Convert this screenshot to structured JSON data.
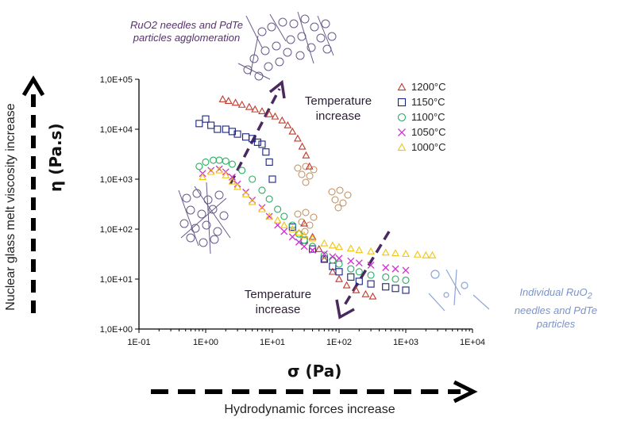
{
  "chart_data": {
    "type": "scatter",
    "xlabel": "σ (Pa)",
    "ylabel": "η (Pa.s)",
    "x_scale": "log",
    "y_scale": "log",
    "xlim": [
      0.1,
      10000
    ],
    "ylim": [
      1,
      100000
    ],
    "x_ticks": [
      "1E-01",
      "1E+00",
      "1E+01",
      "1E+02",
      "1E+03",
      "1E+04"
    ],
    "y_ticks": [
      "1,0E+00",
      "1,0E+01",
      "1,0E+02",
      "1,0E+03",
      "1,0E+04",
      "1,0E+05"
    ],
    "grid": false,
    "legend_position": "top-right",
    "series": [
      {
        "name": "1200°C",
        "color": "#c0392b",
        "marker": "triangle",
        "points": [
          [
            1.8,
            40000
          ],
          [
            2.2,
            37000
          ],
          [
            2.8,
            34000
          ],
          [
            3.5,
            31000
          ],
          [
            4.5,
            28000
          ],
          [
            5.5,
            25000
          ],
          [
            7,
            23000
          ],
          [
            9,
            20000
          ],
          [
            11,
            18000
          ],
          [
            14,
            15000
          ],
          [
            17,
            12000
          ],
          [
            20,
            9000
          ],
          [
            24,
            6500
          ],
          [
            28,
            4500
          ],
          [
            32,
            3000
          ],
          [
            36,
            1800
          ],
          [
            30,
            130
          ],
          [
            40,
            70
          ],
          [
            50,
            40
          ],
          [
            60,
            25
          ],
          [
            80,
            14
          ],
          [
            100,
            10
          ],
          [
            130,
            7.5
          ],
          [
            180,
            6
          ],
          [
            250,
            5
          ],
          [
            320,
            4.5
          ]
        ]
      },
      {
        "name": "1150°C",
        "color": "#1a237e",
        "marker": "square",
        "points": [
          [
            0.8,
            13000
          ],
          [
            1.0,
            16000
          ],
          [
            1.2,
            12000
          ],
          [
            1.5,
            10000
          ],
          [
            2,
            10000
          ],
          [
            2.5,
            9000
          ],
          [
            3,
            8000
          ],
          [
            4,
            7000
          ],
          [
            5,
            6500
          ],
          [
            6,
            5500
          ],
          [
            7,
            5000
          ],
          [
            8,
            3500
          ],
          [
            9,
            2200
          ],
          [
            10,
            1000
          ],
          [
            20,
            110
          ],
          [
            30,
            60
          ],
          [
            40,
            40
          ],
          [
            60,
            25
          ],
          [
            80,
            18
          ],
          [
            100,
            14
          ],
          [
            150,
            11
          ],
          [
            200,
            9
          ],
          [
            300,
            8
          ],
          [
            500,
            7
          ],
          [
            700,
            6.5
          ],
          [
            1000,
            6
          ]
        ]
      },
      {
        "name": "1100°C",
        "color": "#27ae60",
        "marker": "circle",
        "points": [
          [
            0.8,
            1800
          ],
          [
            1.0,
            2200
          ],
          [
            1.3,
            2400
          ],
          [
            1.6,
            2400
          ],
          [
            2,
            2300
          ],
          [
            2.5,
            2000
          ],
          [
            3.5,
            1500
          ],
          [
            5,
            1000
          ],
          [
            7,
            600
          ],
          [
            9,
            400
          ],
          [
            12,
            250
          ],
          [
            15,
            180
          ],
          [
            20,
            120
          ],
          [
            25,
            80
          ],
          [
            30,
            60
          ],
          [
            40,
            45
          ],
          [
            60,
            30
          ],
          [
            80,
            24
          ],
          [
            100,
            20
          ],
          [
            150,
            16
          ],
          [
            200,
            14
          ],
          [
            300,
            12
          ],
          [
            500,
            11
          ],
          [
            700,
            10
          ],
          [
            1000,
            9.5
          ]
        ]
      },
      {
        "name": "1050°C",
        "color": "#cc33cc",
        "marker": "cross",
        "points": [
          [
            0.9,
            1300
          ],
          [
            1.2,
            1500
          ],
          [
            1.6,
            1600
          ],
          [
            2,
            1400
          ],
          [
            2.5,
            1100
          ],
          [
            3,
            800
          ],
          [
            4,
            550
          ],
          [
            5,
            380
          ],
          [
            7,
            270
          ],
          [
            9,
            180
          ],
          [
            12,
            120
          ],
          [
            15,
            90
          ],
          [
            20,
            70
          ],
          [
            25,
            55
          ],
          [
            30,
            45
          ],
          [
            40,
            38
          ],
          [
            60,
            32
          ],
          [
            80,
            28
          ],
          [
            100,
            26
          ],
          [
            150,
            23
          ],
          [
            200,
            21
          ],
          [
            300,
            19
          ],
          [
            500,
            17
          ],
          [
            700,
            16
          ],
          [
            1000,
            15
          ]
        ]
      },
      {
        "name": "1000°C",
        "color": "#f1c40f",
        "marker": "triangle",
        "points": [
          [
            0.9,
            1100
          ],
          [
            1.2,
            1400
          ],
          [
            1.6,
            1500
          ],
          [
            2,
            1200
          ],
          [
            2.5,
            900
          ],
          [
            3,
            700
          ],
          [
            4,
            500
          ],
          [
            5,
            350
          ],
          [
            7,
            250
          ],
          [
            9,
            180
          ],
          [
            12,
            150
          ],
          [
            15,
            120
          ],
          [
            20,
            100
          ],
          [
            25,
            85
          ],
          [
            30,
            75
          ],
          [
            40,
            65
          ],
          [
            60,
            52
          ],
          [
            80,
            47
          ],
          [
            100,
            44
          ],
          [
            150,
            41
          ],
          [
            200,
            38
          ],
          [
            300,
            36
          ],
          [
            500,
            34
          ],
          [
            700,
            33
          ],
          [
            1000,
            32
          ],
          [
            1500,
            31
          ],
          [
            2000,
            30
          ],
          [
            2500,
            30
          ]
        ]
      }
    ]
  },
  "annotations": {
    "top_note": "RuO2 needles and PdTe particles agglomeration",
    "right_note_line1": "Individual RuO",
    "right_note_sub": "2",
    "right_note_line2": "needles and PdTe",
    "right_note_line3": "particles",
    "temp_top_1": "Temperature",
    "temp_top_2": "increase",
    "temp_bottom_1": "Temperature",
    "temp_bottom_2": "increase"
  },
  "side_labels": {
    "vertical": "Nuclear glass melt viscosity increase",
    "horizontal": "Hydrodynamic forces increase"
  }
}
